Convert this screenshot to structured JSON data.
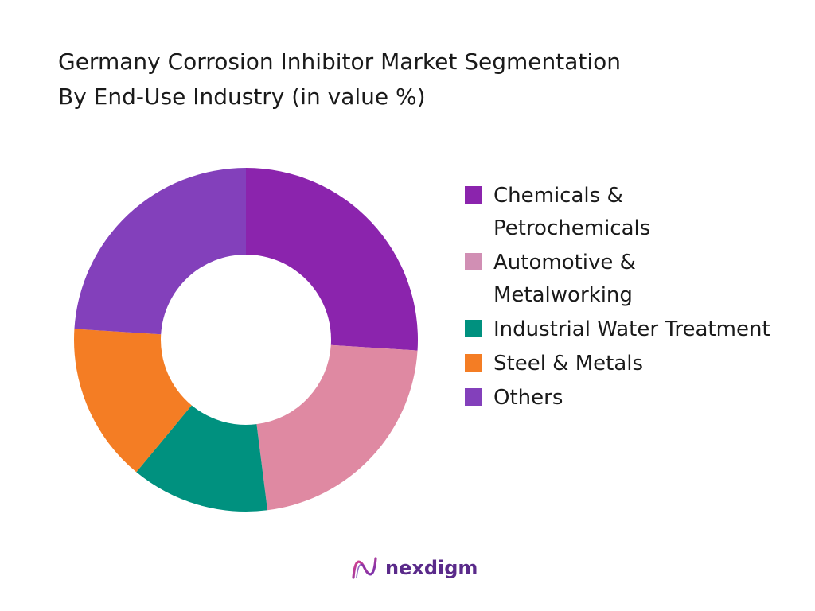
{
  "title_line1": "Germany Corrosion Inhibitor Market Segmentation",
  "title_line2": "By End-Use Industry (in value %)",
  "chart_data": {
    "type": "pie",
    "subtype": "donut",
    "title": "Germany Corrosion Inhibitor Market Segmentation By End-Use Industry (in value %)",
    "categories": [
      "Chemicals & Petrochemicals",
      "Automotive & Metalworking",
      "Industrial Water Treatment",
      "Steel & Metals",
      "Others"
    ],
    "values": [
      26,
      22,
      13,
      15,
      24
    ],
    "colors": [
      "#8b24ad",
      "#df89a2",
      "#00917f",
      "#f47d24",
      "#8340bb"
    ],
    "legend_position": "right"
  },
  "legend": [
    {
      "label": "Chemicals & Petrochemicals",
      "color": "#8b24ad"
    },
    {
      "label": "Automotive & Metalworking",
      "color": "#d18fb4"
    },
    {
      "label": "Industrial Water Treatment",
      "color": "#00917f"
    },
    {
      "label": "Steel & Metals",
      "color": "#f47d24"
    },
    {
      "label": "Others",
      "color": "#8340bb"
    }
  ],
  "brand": {
    "name": "nexdigm",
    "logo_icon": "nexdigm-logo-icon"
  }
}
